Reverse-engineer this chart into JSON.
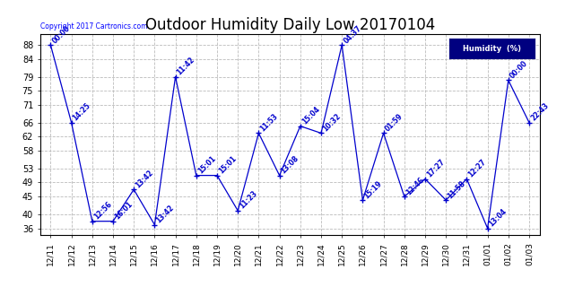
{
  "title": "Outdoor Humidity Daily Low 20170104",
  "copyright": "Copyright 2017 Cartronics.com",
  "legend_label": "Humidity  (%)",
  "x_labels": [
    "12/11",
    "12/12",
    "12/13",
    "12/14",
    "12/15",
    "12/16",
    "12/17",
    "12/18",
    "12/19",
    "12/20",
    "12/21",
    "12/22",
    "12/23",
    "12/24",
    "12/25",
    "12/26",
    "12/27",
    "12/28",
    "12/29",
    "12/30",
    "12/31",
    "01/01",
    "01/02",
    "01/03"
  ],
  "y_values": [
    88,
    66,
    38,
    38,
    47,
    37,
    79,
    51,
    51,
    41,
    63,
    51,
    65,
    63,
    88,
    44,
    63,
    45,
    50,
    44,
    50,
    36,
    78,
    66
  ],
  "point_labels": [
    "00:00",
    "14:25",
    "12:56",
    "16:01",
    "13:42",
    "13:42",
    "11:42",
    "15:01",
    "15:01",
    "11:23",
    "11:53",
    "13:08",
    "15:04",
    "10:32",
    "04:37",
    "15:19",
    "01:59",
    "12:46",
    "17:27",
    "11:58",
    "12:27",
    "13:04",
    "00:00",
    "22:43"
  ],
  "ylim": [
    34,
    91
  ],
  "yticks": [
    36,
    40,
    45,
    49,
    53,
    58,
    62,
    66,
    71,
    75,
    79,
    84,
    88
  ],
  "line_color": "#0000CD",
  "bg_color": "#FFFFFF",
  "grid_color": "#BBBBBB",
  "title_fontsize": 12,
  "legend_bg": "#000080",
  "legend_fg": "#FFFFFF"
}
